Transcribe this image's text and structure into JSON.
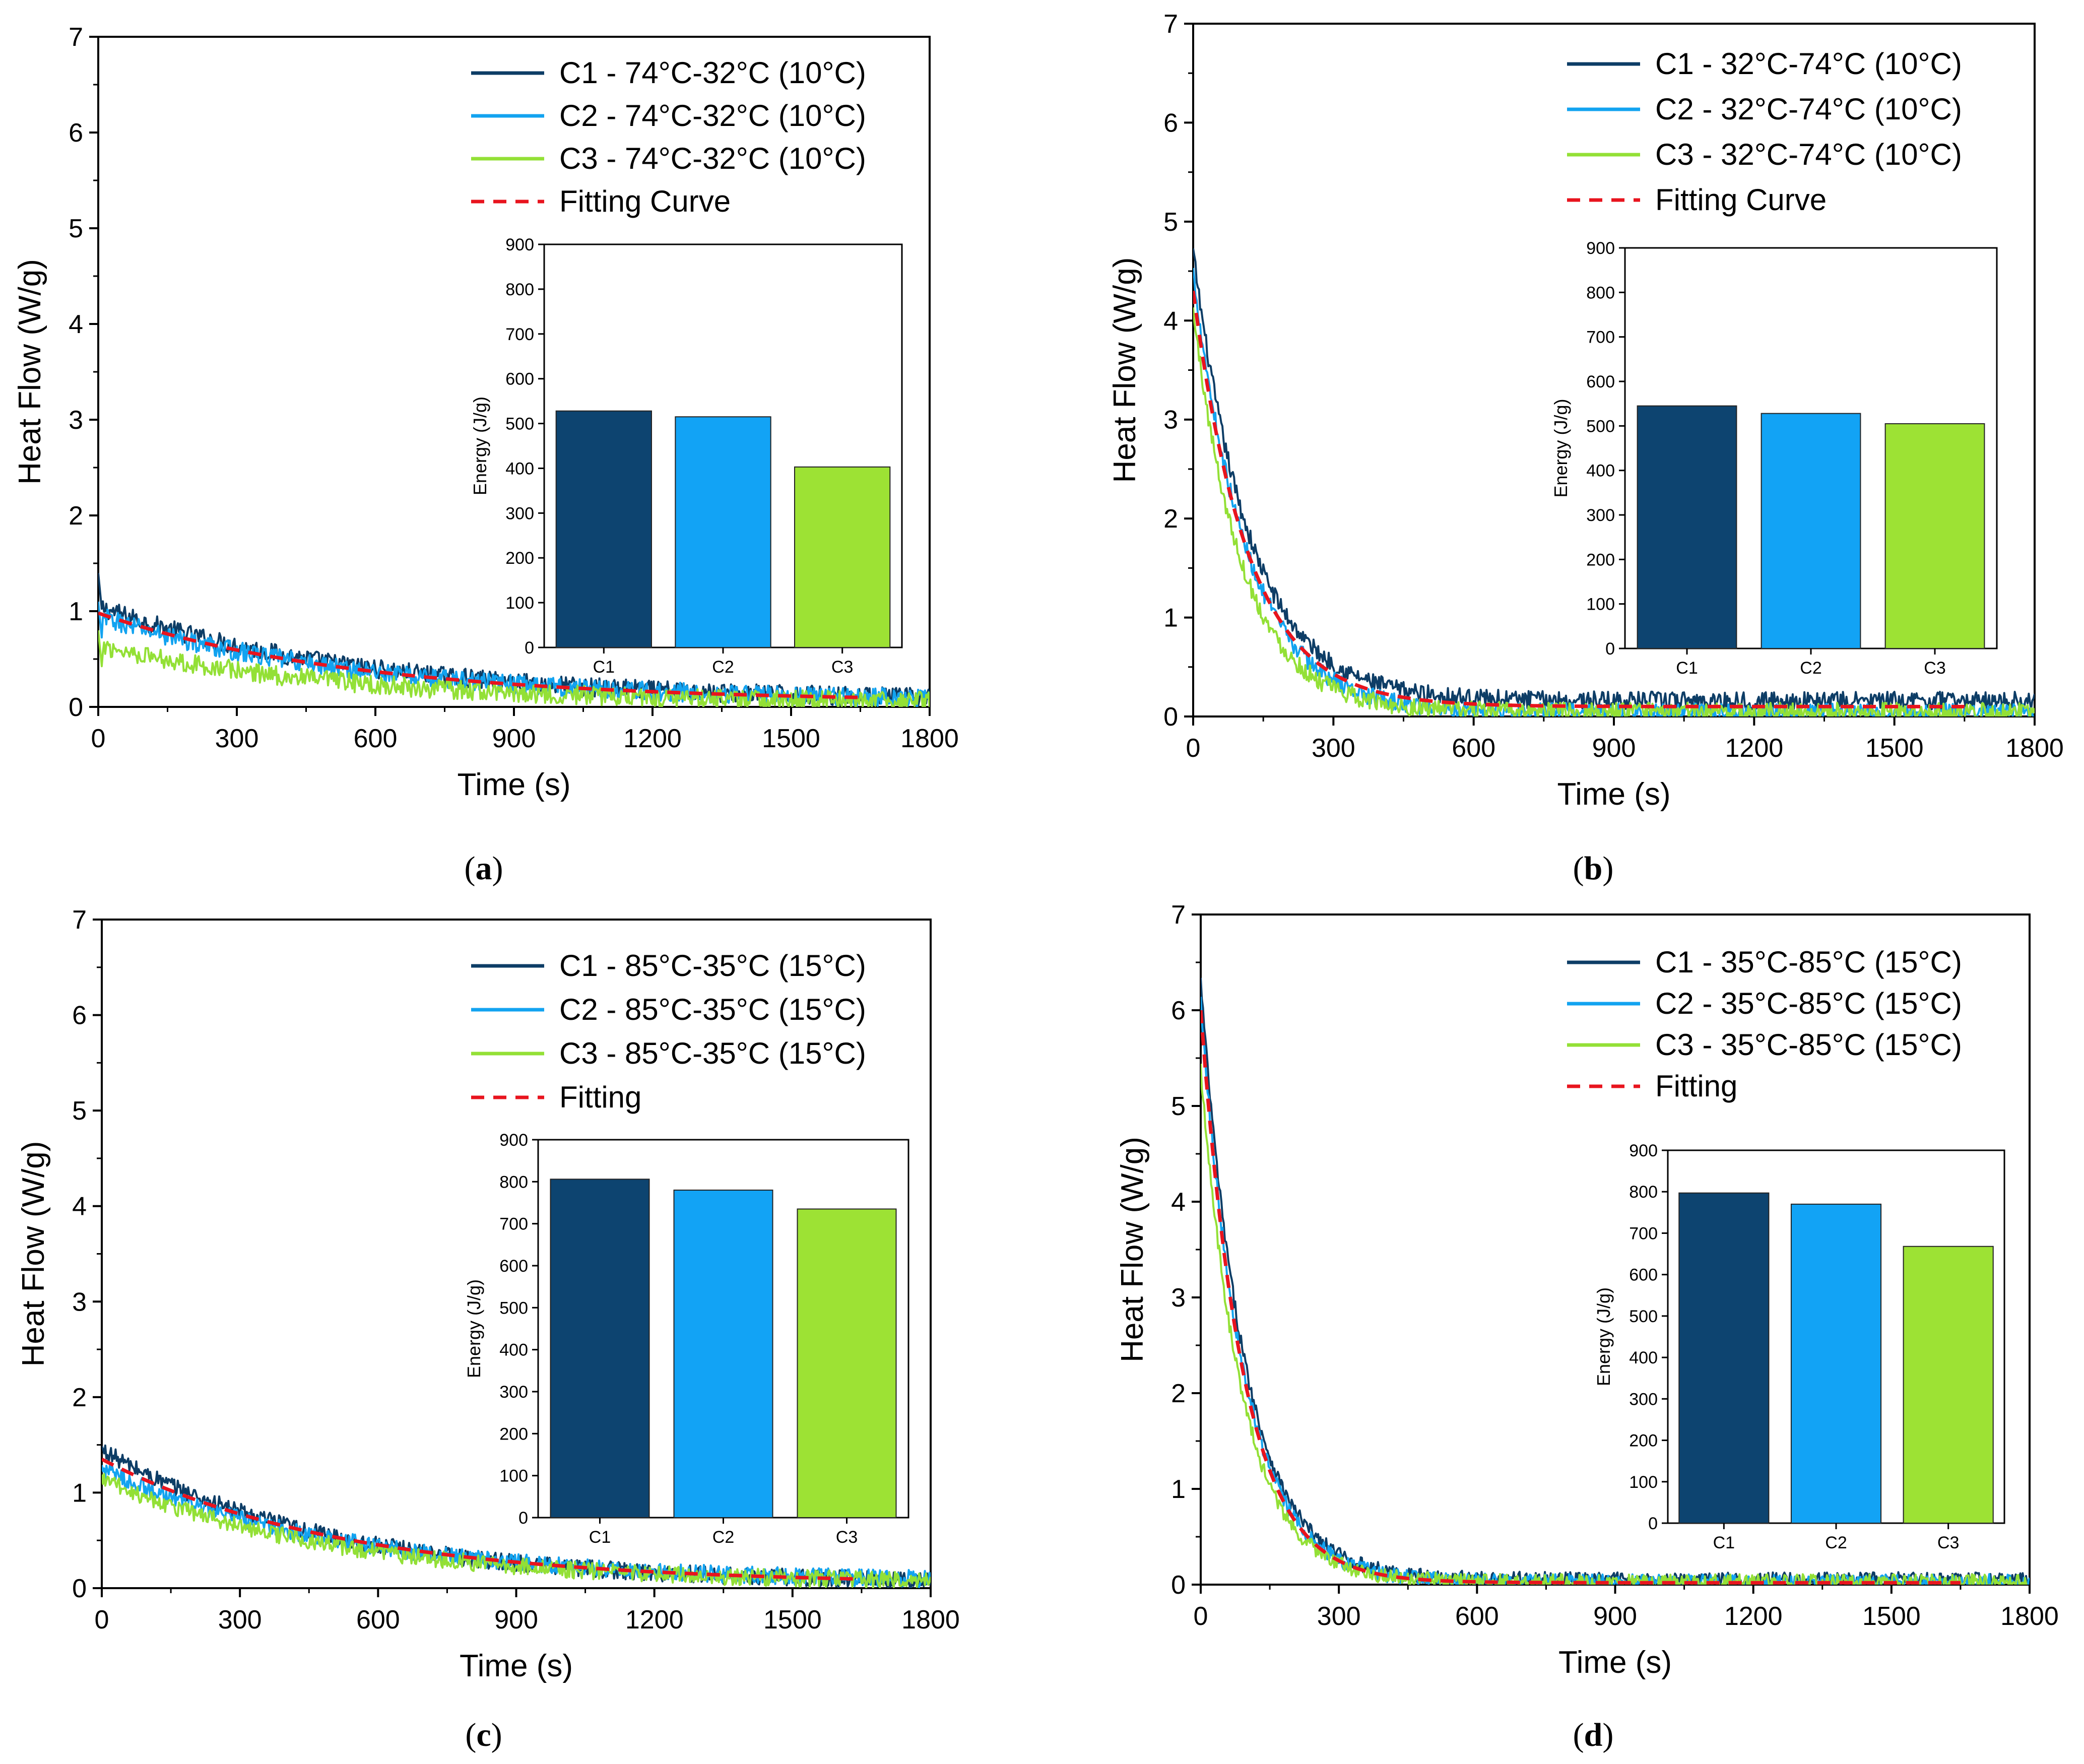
{
  "figure": {
    "panels": [
      {
        "caption_letter": "a",
        "chart_data": {
          "type": "line",
          "xlabel": "Time (s)",
          "ylabel": "Heat Flow (W/g)",
          "xlim": [
            0,
            1800
          ],
          "ylim": [
            0,
            7
          ],
          "x_ticks": [
            "0",
            "300",
            "600",
            "900",
            "1200",
            "1500",
            "1800"
          ],
          "y_ticks": [
            "0",
            "1",
            "2",
            "3",
            "4",
            "5",
            "6",
            "7"
          ],
          "legend_position": "top-right",
          "series": [
            {
              "name": "C1 - 74°C-32°C (10°C)",
              "color": "#0d3d66",
              "style": "solid",
              "start": 1.05,
              "end": 0.06,
              "tau": 560,
              "noise": 0.1,
              "spike": 1.4
            },
            {
              "name": "C2 - 74°C-32°C (10°C)",
              "color": "#12a3f0",
              "style": "solid",
              "start": 0.95,
              "end": 0.06,
              "tau": 560,
              "noise": 0.1,
              "spike": 1.1
            },
            {
              "name": "C3 - 74°C-32°C (10°C)",
              "color": "#93e036",
              "style": "solid",
              "start": 0.65,
              "end": 0.04,
              "tau": 520,
              "noise": 0.1,
              "spike": 0.8
            },
            {
              "name": "Fitting Curve",
              "color": "#e8141e",
              "style": "dashed",
              "start": 0.98,
              "end": 0.05,
              "tau": 560,
              "noise": 0
            }
          ],
          "inset": {
            "type": "bar",
            "ylabel": "Energy (J/g)",
            "ylim": [
              0,
              900
            ],
            "y_ticks": [
              "0",
              "100",
              "200",
              "300",
              "400",
              "500",
              "600",
              "700",
              "800",
              "900"
            ],
            "categories": [
              "C1",
              "C2",
              "C3"
            ],
            "values": [
              528,
              515,
              403
            ],
            "colors": [
              "#0d4470",
              "#12a3f5",
              "#9de234"
            ]
          }
        }
      },
      {
        "caption_letter": "b",
        "chart_data": {
          "type": "line",
          "xlabel": "Time (s)",
          "ylabel": "Heat Flow (W/g)",
          "xlim": [
            0,
            1800
          ],
          "ylim": [
            0,
            7
          ],
          "x_ticks": [
            "0",
            "300",
            "600",
            "900",
            "1200",
            "1500",
            "1800"
          ],
          "y_ticks": [
            "0",
            "1",
            "2",
            "3",
            "4",
            "5",
            "6",
            "7"
          ],
          "legend_position": "top-right",
          "series": [
            {
              "name": "C1 - 32°C-74°C (10°C)",
              "color": "#0d3d66",
              "style": "solid",
              "start": 4.7,
              "end": 0.16,
              "tau": 120,
              "noise": 0.09
            },
            {
              "name": "C2 - 32°C-74°C (10°C)",
              "color": "#12a3f0",
              "style": "solid",
              "start": 4.5,
              "end": 0.04,
              "tau": 115,
              "noise": 0.09
            },
            {
              "name": "C3 - 32°C-74°C (10°C)",
              "color": "#93e036",
              "style": "solid",
              "start": 4.1,
              "end": 0.05,
              "tau": 105,
              "noise": 0.09
            },
            {
              "name": "Fitting Curve",
              "color": "#e8141e",
              "style": "dashed",
              "start": 4.3,
              "end": 0.1,
              "tau": 118,
              "noise": 0
            }
          ],
          "inset": {
            "type": "bar",
            "ylabel": "Energy (J/g)",
            "ylim": [
              0,
              900
            ],
            "y_ticks": [
              "0",
              "100",
              "200",
              "300",
              "400",
              "500",
              "600",
              "700",
              "800",
              "900"
            ],
            "categories": [
              "C1",
              "C2",
              "C3"
            ],
            "values": [
              545,
              528,
              505
            ],
            "colors": [
              "#0d4470",
              "#12a3f5",
              "#9de234"
            ]
          }
        }
      },
      {
        "caption_letter": "c",
        "chart_data": {
          "type": "line",
          "xlabel": "Time (s)",
          "ylabel": "Heat Flow (W/g)",
          "xlim": [
            0,
            1800
          ],
          "ylim": [
            0,
            7
          ],
          "x_ticks": [
            "0",
            "300",
            "600",
            "900",
            "1200",
            "1500",
            "1800"
          ],
          "y_ticks": [
            "0",
            "1",
            "2",
            "3",
            "4",
            "5",
            "6",
            "7"
          ],
          "legend_position": "top-right",
          "series": [
            {
              "name": "C1 - 85°C-35°C (15°C)",
              "color": "#0d3d66",
              "style": "solid",
              "start": 1.45,
              "end": 0.05,
              "tau": 480,
              "noise": 0.09
            },
            {
              "name": "C2 - 85°C-35°C (15°C)",
              "color": "#12a3f0",
              "style": "solid",
              "start": 1.25,
              "end": 0.06,
              "tau": 520,
              "noise": 0.09
            },
            {
              "name": "C3 - 85°C-35°C (15°C)",
              "color": "#93e036",
              "style": "solid",
              "start": 1.15,
              "end": 0.05,
              "tau": 500,
              "noise": 0.09
            },
            {
              "name": "Fitting",
              "color": "#e8141e",
              "style": "dashed",
              "start": 1.35,
              "end": 0.04,
              "tau": 520,
              "noise": 0
            }
          ],
          "inset": {
            "type": "bar",
            "ylabel": "Energy (J/g)",
            "ylim": [
              0,
              900
            ],
            "y_ticks": [
              "0",
              "100",
              "200",
              "300",
              "400",
              "500",
              "600",
              "700",
              "800",
              "900"
            ],
            "categories": [
              "C1",
              "C2",
              "C3"
            ],
            "values": [
              806,
              780,
              735
            ],
            "colors": [
              "#0d4470",
              "#12a3f5",
              "#9de234"
            ]
          }
        }
      },
      {
        "caption_letter": "d",
        "chart_data": {
          "type": "line",
          "xlabel": "Time (s)",
          "ylabel": "Heat Flow (W/g)",
          "xlim": [
            0,
            1800
          ],
          "ylim": [
            0,
            7
          ],
          "x_ticks": [
            "0",
            "300",
            "600",
            "900",
            "1200",
            "1500",
            "1800"
          ],
          "y_ticks": [
            "0",
            "1",
            "2",
            "3",
            "4",
            "5",
            "6",
            "7"
          ],
          "legend_position": "top-right",
          "series": [
            {
              "name": "C1 - 35°C-85°C (15°C)",
              "color": "#0d3d66",
              "style": "solid",
              "start": 6.3,
              "end": 0.05,
              "tau": 95,
              "noise": 0.08
            },
            {
              "name": "C2 - 35°C-85°C (15°C)",
              "color": "#12a3f0",
              "style": "solid",
              "start": 6.1,
              "end": 0.03,
              "tau": 92,
              "noise": 0.08
            },
            {
              "name": "C3 - 35°C-85°C (15°C)",
              "color": "#93e036",
              "style": "solid",
              "start": 5.4,
              "end": 0.03,
              "tau": 90,
              "noise": 0.08
            },
            {
              "name": "Fitting",
              "color": "#e8141e",
              "style": "dashed",
              "start": 6.0,
              "end": 0.02,
              "tau": 92,
              "noise": 0
            }
          ],
          "inset": {
            "type": "bar",
            "ylabel": "Energy (J/g)",
            "ylim": [
              0,
              900
            ],
            "y_ticks": [
              "0",
              "100",
              "200",
              "300",
              "400",
              "500",
              "600",
              "700",
              "800",
              "900"
            ],
            "categories": [
              "C1",
              "C2",
              "C3"
            ],
            "values": [
              797,
              770,
              668
            ],
            "colors": [
              "#0d4470",
              "#12a3f5",
              "#9de234"
            ]
          }
        }
      }
    ]
  }
}
